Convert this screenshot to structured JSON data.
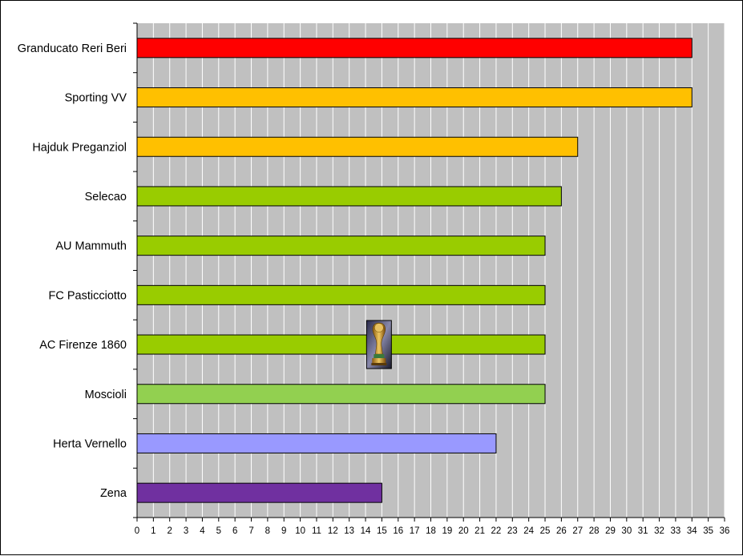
{
  "chart_data": {
    "type": "bar",
    "orientation": "horizontal",
    "categories": [
      "Granducato Reri Beri",
      "Sporting VV",
      "Hajduk Preganziol",
      "Selecao",
      "AU Mammuth",
      "FC Pasticciotto",
      "AC Firenze 1860",
      "Moscioli",
      "Herta Vernello",
      "Zena"
    ],
    "values": [
      34,
      34,
      27,
      26,
      25,
      25,
      25,
      25,
      22,
      15
    ],
    "colors": [
      "#ff0000",
      "#ffc000",
      "#ffc000",
      "#99cc00",
      "#99cc00",
      "#99cc00",
      "#99cc00",
      "#92d050",
      "#9999ff",
      "#7030a0"
    ],
    "xlim": [
      0,
      36
    ],
    "xticks": [
      "0",
      "1",
      "2",
      "3",
      "4",
      "5",
      "6",
      "7",
      "8",
      "9",
      "10",
      "11",
      "12",
      "13",
      "14",
      "15",
      "16",
      "17",
      "18",
      "19",
      "20",
      "21",
      "22",
      "23",
      "24",
      "25",
      "26",
      "27",
      "28",
      "29",
      "30",
      "31",
      "32",
      "33",
      "34",
      "35",
      "36"
    ],
    "grid": "vertical",
    "plot_background": "#c0c0c0",
    "title": "",
    "xlabel": "",
    "ylabel": "",
    "annotation_icon": "trophy-icon",
    "annotation_category": "AC Firenze 1860",
    "annotation_x": 14.8
  }
}
